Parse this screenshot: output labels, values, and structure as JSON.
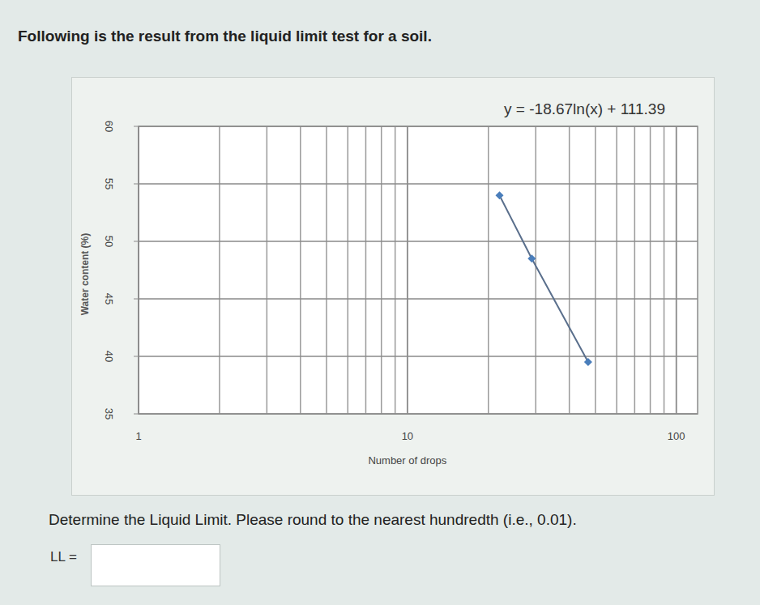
{
  "header": {
    "title": "Following is the result from the liquid limit test for a soil."
  },
  "chart_data": {
    "type": "scatter",
    "xlabel": "Number of drops",
    "ylabel": "Water content (%)",
    "annotation": "y = -18.67ln(x) + 111.39",
    "x": [
      22,
      29,
      47
    ],
    "values": [
      54,
      48.5,
      39.5
    ],
    "color": "#4a7ebb",
    "marker": "diamond",
    "line_style": "solid",
    "xlim": [
      1,
      120
    ],
    "ylim": [
      35,
      60
    ],
    "xticks": [
      1,
      10,
      100
    ],
    "yticks": [
      35,
      40,
      45,
      50,
      55,
      60
    ],
    "log": "x",
    "grid": true
  },
  "question": {
    "text": "Determine the Liquid Limit. Please round to the nearest hundredth (i.e., 0.01).",
    "answer_label": "LL ="
  }
}
